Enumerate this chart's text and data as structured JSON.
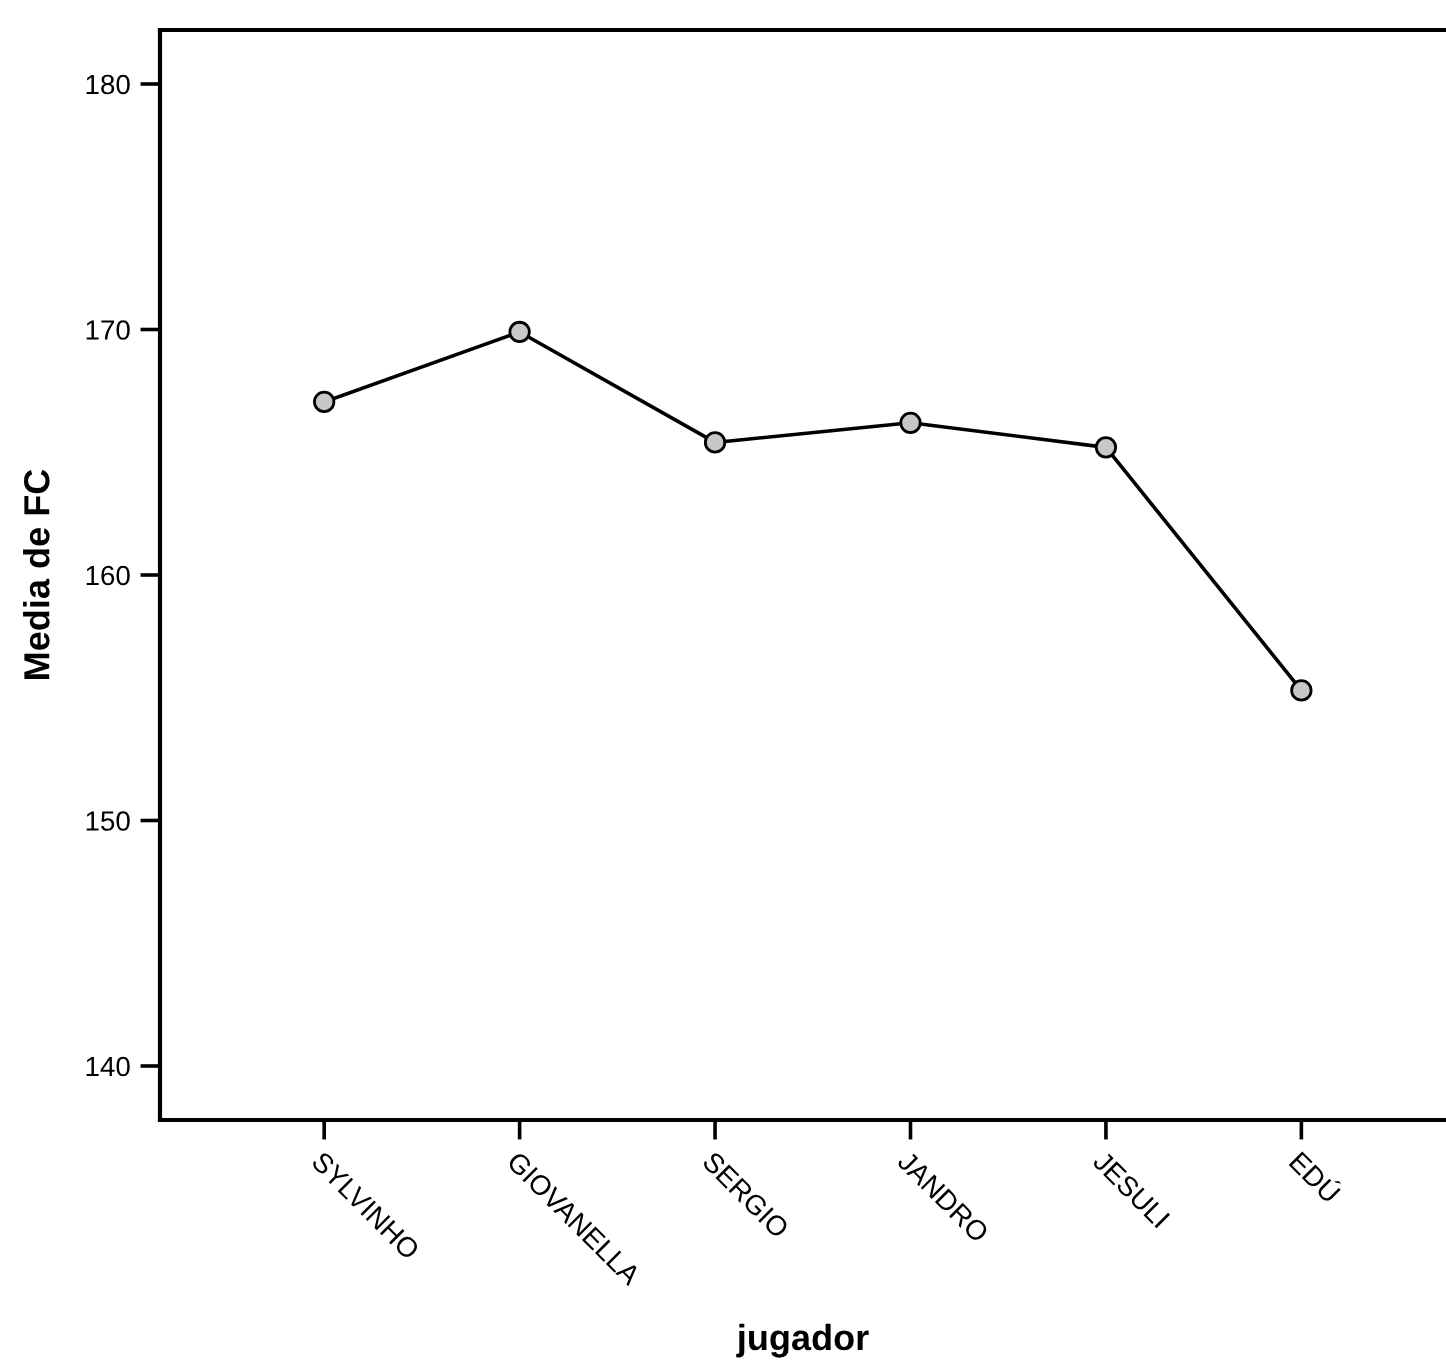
{
  "chart_data": {
    "type": "line",
    "xlabel": "jugador",
    "ylabel": "Media de FC",
    "categories": [
      "SYLVINHO",
      "GIOVANELLA",
      "SERGIO",
      "JANDRO",
      "JESULI",
      "EDÚ"
    ],
    "series": [
      {
        "color": "#000000",
        "values": [
          167.05,
          169.9,
          165.4,
          166.2,
          165.2,
          155.3
        ]
      }
    ],
    "ylim": [
      137.8,
      182.2
    ],
    "yticks": [
      140,
      150,
      160,
      170,
      180
    ],
    "marker": "circle",
    "line_style": "solid",
    "grid": false,
    "legend": false
  }
}
